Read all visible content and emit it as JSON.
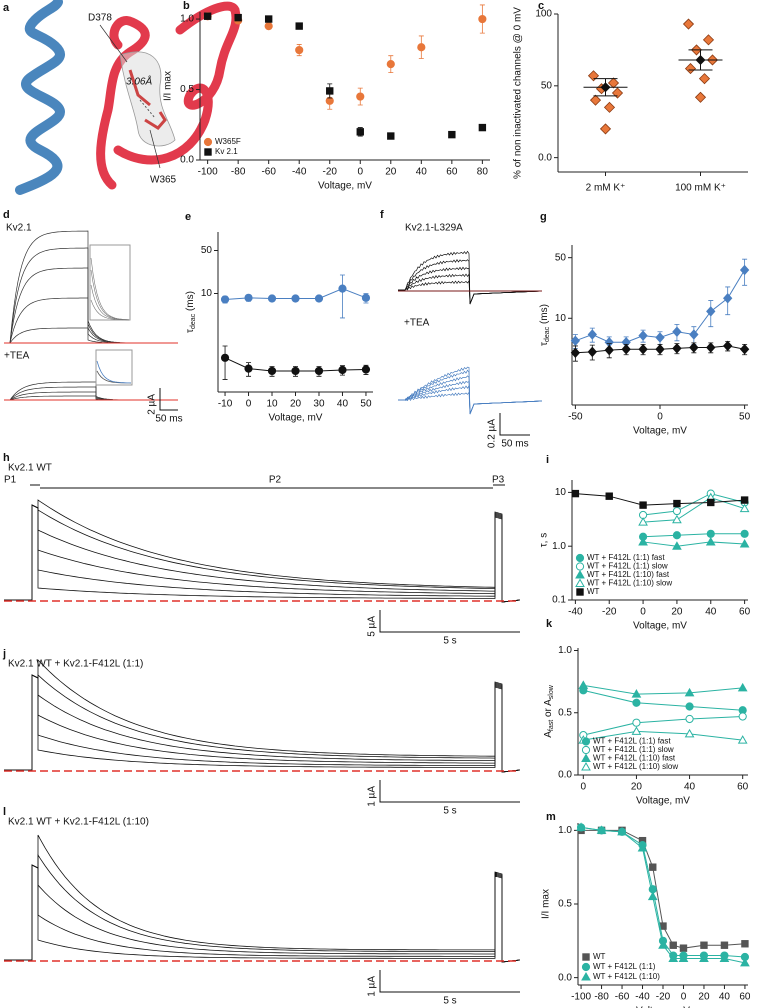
{
  "panels": {
    "a": {
      "label": "a",
      "texts": [
        "D378",
        "3.06Å",
        "W365"
      ]
    },
    "d": {
      "label": "d",
      "title": "Kv2.1",
      "treatment": "+TEA",
      "scale_y": "2 µA",
      "scale_x": "50 ms"
    },
    "f": {
      "label": "f",
      "title": "Kv2.1-L329A",
      "treatment": "+TEA",
      "scale_y": "0.2 µA",
      "scale_x": "50 ms"
    },
    "h": {
      "label": "h",
      "title": "Kv2.1 WT",
      "pulses": [
        "P1",
        "P2",
        "P3"
      ],
      "scale_y": "5 µA",
      "scale_x": "5 s"
    },
    "j": {
      "label": "j",
      "title": "Kv2.1 WT + Kv2.1-F412L (1:1)",
      "scale_y": "1 µA",
      "scale_x": "5 s"
    },
    "l": {
      "label": "l",
      "title": "Kv2.1 WT + Kv2.1-F412L (1:10)",
      "scale_y": "1 µA",
      "scale_x": "5 s"
    }
  },
  "chart_data": [
    {
      "panel": "b",
      "type": "scatter",
      "xlabel": "Voltage, mV",
      "ylabel": "I/I max",
      "x": [
        -100,
        -80,
        -60,
        -40,
        -20,
        0,
        20,
        40,
        60,
        80
      ],
      "xlim": [
        -105,
        85
      ],
      "xticks": [
        -100,
        -80,
        -60,
        -40,
        -20,
        0,
        20,
        40,
        60,
        80
      ],
      "ylim": [
        0,
        1.05
      ],
      "yticks": [
        {
          "value": 0,
          "label": "0.0"
        },
        0.5,
        {
          "value": 1,
          "label": "1.0"
        }
      ],
      "legend": "lower left",
      "series": [
        {
          "name": "W365F",
          "color": "#e8773a",
          "marker": "circle",
          "filled": true,
          "line": false,
          "values": [
            1.02,
            0.99,
            0.95,
            0.78,
            0.42,
            0.45,
            0.68,
            0.8,
            null,
            1.0
          ],
          "errors": [
            0.01,
            0.02,
            0.02,
            0.04,
            0.06,
            0.06,
            0.06,
            0.08,
            null,
            0.1
          ]
        },
        {
          "name": "Kv 2.1",
          "color": "#111111",
          "marker": "square",
          "filled": true,
          "line": false,
          "values": [
            1.02,
            1.01,
            1.0,
            0.95,
            0.49,
            0.2,
            0.17,
            null,
            0.18,
            0.23
          ],
          "errors": [
            0.01,
            0.01,
            0.01,
            0.01,
            0.05,
            0.03,
            0.01,
            null,
            0.01,
            0.01
          ]
        }
      ]
    },
    {
      "panel": "c",
      "type": "strip",
      "ylabel": "% of non inactivated channels @ 0 mV",
      "categories": [
        "2 mM K⁺",
        "100 mM K⁺"
      ],
      "ylim": [
        -10,
        100
      ],
      "yticks": [
        {
          "value": 0,
          "label": "0.0"
        },
        50,
        100
      ],
      "color": "#e8773a",
      "points": [
        [
          57,
          52,
          48,
          45,
          40,
          35,
          20
        ],
        [
          93,
          82,
          75,
          68,
          62,
          55,
          42
        ]
      ],
      "means": [
        49,
        68
      ],
      "sem": [
        6,
        7
      ]
    },
    {
      "panel": "e",
      "type": "scatter",
      "xlabel": "Voltage, mV",
      "ylabel_parts": [
        {
          "text": "τ"
        },
        {
          "text": "deac",
          "sub": true
        },
        {
          "text": " (ms)"
        }
      ],
      "x": [
        -10,
        0,
        10,
        20,
        30,
        40,
        50
      ],
      "xlim": [
        -13,
        53
      ],
      "xticks": [
        -10,
        0,
        10,
        20,
        30,
        40,
        50
      ],
      "ylog": true,
      "ylim": [
        0.25,
        100
      ],
      "yticks": [
        10,
        50
      ],
      "series": [
        {
          "color": "#4a7fc1",
          "marker": "circle",
          "filled": true,
          "line": true,
          "values": [
            8,
            8.5,
            8.3,
            8.3,
            8.3,
            12,
            8.5
          ],
          "errors": [
            1,
            1,
            0.8,
            0.8,
            0.8,
            8,
            1.5
          ]
        },
        {
          "color": "#111111",
          "marker": "circle",
          "filled": true,
          "line": true,
          "values": [
            0.9,
            0.6,
            0.55,
            0.55,
            0.55,
            0.57,
            0.58
          ],
          "errors": [
            0.5,
            0.15,
            0.1,
            0.1,
            0.1,
            0.1,
            0.1
          ]
        }
      ]
    },
    {
      "panel": "g",
      "type": "scatter",
      "xlabel": "Voltage, mV",
      "ylabel_parts": [
        {
          "text": "τ"
        },
        {
          "text": "deac",
          "sub": true
        },
        {
          "text": " (ms)"
        }
      ],
      "x": [
        -50,
        -40,
        -30,
        -20,
        -10,
        0,
        10,
        20,
        30,
        40,
        50
      ],
      "xlim": [
        -52,
        52
      ],
      "xticks": [
        -50,
        0,
        50
      ],
      "ylog": true,
      "ylim": [
        1,
        70
      ],
      "yticks": [
        10,
        50
      ],
      "series": [
        {
          "color": "#4a7fc1",
          "marker": "diamond",
          "filled": true,
          "line": true,
          "values": [
            5.5,
            6.5,
            5.3,
            5.3,
            6.3,
            6.0,
            7.0,
            6.5,
            12,
            17,
            36
          ],
          "errors": [
            1,
            1.2,
            0.8,
            0.8,
            1,
            1,
            1.5,
            1.5,
            4,
            6,
            12
          ]
        },
        {
          "color": "#111111",
          "marker": "diamond",
          "filled": true,
          "line": true,
          "values": [
            4.0,
            4.1,
            4.3,
            4.4,
            4.4,
            4.4,
            4.5,
            4.6,
            4.6,
            4.8,
            4.4
          ],
          "errors": [
            0.8,
            0.8,
            0.8,
            0.6,
            0.6,
            0.6,
            0.6,
            0.6,
            0.6,
            0.6,
            0.6
          ]
        }
      ]
    },
    {
      "panel": "i",
      "type": "scatter",
      "xlabel": "Voltage, mV",
      "ylabel": "τ, s",
      "x": [
        -40,
        -20,
        0,
        20,
        40,
        60
      ],
      "xlim": [
        -42,
        62
      ],
      "xticks": [
        -40,
        -20,
        0,
        20,
        40,
        60
      ],
      "ylog": true,
      "ylim": [
        0.1,
        17
      ],
      "yticks": [
        0.1,
        {
          "value": 1,
          "label": "1.0"
        },
        10
      ],
      "legend": "lower left",
      "series": [
        {
          "name": "WT + F412L (1:1) fast",
          "color": "#2bb3a3",
          "marker": "circle",
          "filled": true,
          "line": true,
          "values": [
            null,
            null,
            1.5,
            1.6,
            1.7,
            1.7
          ]
        },
        {
          "name": "WT + F412L (1:1) slow",
          "color": "#2bb3a3",
          "marker": "circle",
          "filled": false,
          "line": true,
          "values": [
            null,
            null,
            3.8,
            4.5,
            9.5,
            6.5
          ]
        },
        {
          "name": "WT + F412L (1:10) fast",
          "color": "#2bb3a3",
          "marker": "triangle",
          "filled": true,
          "line": true,
          "values": [
            null,
            null,
            1.2,
            1.0,
            1.2,
            1.1
          ]
        },
        {
          "name": "WT + F412L (1:10) slow",
          "color": "#2bb3a3",
          "marker": "triangle",
          "filled": false,
          "line": true,
          "values": [
            null,
            null,
            2.8,
            3.1,
            8,
            5
          ]
        },
        {
          "name": "WT",
          "color": "#111111",
          "marker": "square",
          "filled": true,
          "line": true,
          "values": [
            9.5,
            8.5,
            5.8,
            6.2,
            6.5,
            7.2
          ]
        }
      ]
    },
    {
      "panel": "k",
      "type": "scatter",
      "xlabel": "Voltage, mV",
      "ylabel_parts": [
        {
          "text": "A"
        },
        {
          "text": "fast",
          "sub": true
        },
        {
          "text": " or A"
        },
        {
          "text": "slow",
          "sub": true
        }
      ],
      "x": [
        0,
        20,
        40,
        60
      ],
      "xlim": [
        -2,
        62
      ],
      "xticks": [
        0,
        20,
        40,
        60
      ],
      "ylim": [
        0,
        1.02
      ],
      "yticks": [
        {
          "value": 0,
          "label": "0.0"
        },
        0.5,
        {
          "value": 1,
          "label": "1.0"
        }
      ],
      "legend": "lower left",
      "series": [
        {
          "name": "WT + F412L (1:1) fast",
          "color": "#2bb3a3",
          "marker": "circle",
          "filled": true,
          "line": true,
          "values": [
            0.68,
            0.58,
            0.55,
            0.52
          ]
        },
        {
          "name": "WT + F412L (1:1) slow",
          "color": "#2bb3a3",
          "marker": "circle",
          "filled": false,
          "line": true,
          "values": [
            0.32,
            0.42,
            0.45,
            0.47
          ]
        },
        {
          "name": "WT + F412L (1:10) fast",
          "color": "#2bb3a3",
          "marker": "triangle",
          "filled": true,
          "line": true,
          "values": [
            0.72,
            0.65,
            0.66,
            0.7
          ]
        },
        {
          "name": "WT + F412L (1:10) slow",
          "color": "#2bb3a3",
          "marker": "triangle",
          "filled": false,
          "line": true,
          "values": [
            0.28,
            0.35,
            0.33,
            0.28
          ]
        }
      ]
    },
    {
      "panel": "m",
      "type": "scatter",
      "xlabel": "Voltage, mV",
      "ylabel": "I/I max",
      "x": [
        -100,
        -80,
        -60,
        -40,
        -30,
        -20,
        -10,
        0,
        20,
        40,
        60
      ],
      "xlim": [
        -103,
        63
      ],
      "xticks": [
        -100,
        -80,
        -60,
        -40,
        -20,
        0,
        20,
        40,
        60
      ],
      "ylim": [
        -0.05,
        1.05
      ],
      "yticks": [
        {
          "value": 0,
          "label": "0.0"
        },
        0.5,
        {
          "value": 1,
          "label": "1.0"
        }
      ],
      "legend": "lower left",
      "series": [
        {
          "name": "WT",
          "color": "#555555",
          "marker": "square",
          "filled": true,
          "line": true,
          "values": [
            1.0,
            1.0,
            1.0,
            0.93,
            0.75,
            0.35,
            0.22,
            0.2,
            0.22,
            0.22,
            0.23
          ]
        },
        {
          "name": "WT + F412L (1:1)",
          "color": "#2bb3a3",
          "marker": "circle",
          "filled": true,
          "line": true,
          "values": [
            1.02,
            1.0,
            0.99,
            0.9,
            0.6,
            0.25,
            0.15,
            0.15,
            0.15,
            0.15,
            0.14
          ]
        },
        {
          "name": "WT + F412L (1:10)",
          "color": "#2bb3a3",
          "marker": "triangle",
          "filled": true,
          "line": true,
          "values": [
            1.02,
            1.0,
            0.99,
            0.88,
            0.55,
            0.22,
            0.13,
            0.13,
            0.13,
            0.13,
            0.1
          ]
        }
      ]
    }
  ]
}
